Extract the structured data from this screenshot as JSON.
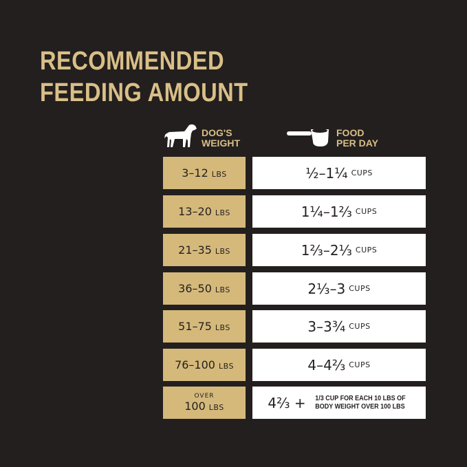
{
  "title": {
    "line1": "RECOMMENDED",
    "line2": "FEEDING AMOUNT"
  },
  "headers": {
    "weight_line1": "DOG'S",
    "weight_line2": "WEIGHT",
    "weight_icon": "dog-icon",
    "food_line1": "FOOD",
    "food_line2": "PER DAY",
    "food_icon": "measuring-cup-icon"
  },
  "colors": {
    "background": "#231f1e",
    "gold": "#d5b97b",
    "title": "#d9bf88"
  },
  "rows": [
    {
      "weight": "3–12",
      "unit": "LBS",
      "amount": "½–1¼",
      "amount_unit": "CUPS"
    },
    {
      "weight": "13–20",
      "unit": "LBS",
      "amount": "1¼–1⅔",
      "amount_unit": "CUPS"
    },
    {
      "weight": "21–35",
      "unit": "LBS",
      "amount": "1⅔–2⅓",
      "amount_unit": "CUPS"
    },
    {
      "weight": "36–50",
      "unit": "LBS",
      "amount": "2⅓–3",
      "amount_unit": "CUPS"
    },
    {
      "weight": "51–75",
      "unit": "LBS",
      "amount": "3–3¾",
      "amount_unit": "CUPS"
    },
    {
      "weight": "76–100",
      "unit": "LBS",
      "amount": "4–4⅔",
      "amount_unit": "CUPS"
    }
  ],
  "last_row": {
    "prefix": "OVER",
    "weight": "100",
    "unit": "LBS",
    "amount": "4⅔ +",
    "note_line1": "1/3 CUP FOR EACH 10 LBS OF",
    "note_line2": "BODY WEIGHT OVER 100 LBS"
  }
}
